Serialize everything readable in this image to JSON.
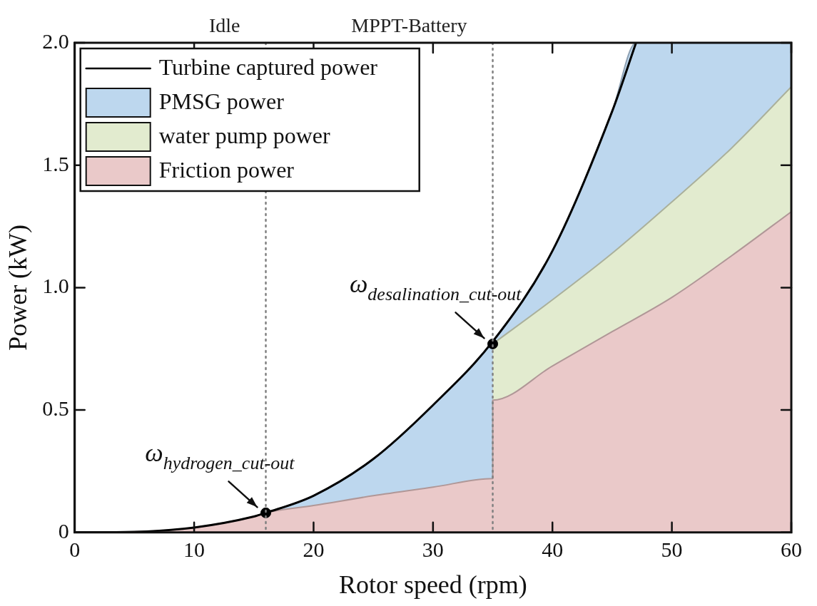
{
  "chart_data": {
    "type": "area",
    "xlabel": "Rotor speed (rpm)",
    "ylabel": "Power (kW)",
    "xlim": [
      0,
      60
    ],
    "xticks": [
      0,
      10,
      20,
      30,
      40,
      50,
      60
    ],
    "ylim": [
      0,
      2
    ],
    "yticks": [
      0,
      0.5,
      {
        "value": 1,
        "label": "1.0"
      },
      1.5,
      {
        "value": 2,
        "label": "2.0"
      }
    ],
    "grid": false,
    "legend": "top left",
    "series": [
      {
        "name": "Turbine captured power",
        "type": "line",
        "color": "#000000",
        "x": [
          0,
          5,
          10,
          15,
          16,
          20,
          25,
          30,
          35,
          40,
          45,
          47
        ],
        "values": [
          0,
          0.002,
          0.02,
          0.065,
          0.08,
          0.15,
          0.3,
          0.52,
          0.78,
          1.15,
          1.72,
          2.0
        ]
      },
      {
        "name": "PMSG power",
        "type": "area",
        "color": "#bdd7ee",
        "x": [
          16,
          20,
          25,
          30,
          35,
          40,
          45,
          47,
          60
        ],
        "values": [
          0.08,
          0.15,
          0.3,
          0.52,
          0.78,
          1.15,
          1.72,
          2.0,
          2.0
        ]
      },
      {
        "name": "water pump power",
        "type": "area",
        "color": "#e2ebcf",
        "x": [
          35,
          40,
          45,
          50,
          55,
          60
        ],
        "values": [
          0.77,
          0.95,
          1.14,
          1.35,
          1.57,
          1.82
        ]
      },
      {
        "name": "Friction power",
        "type": "area",
        "color": "#eac9c9",
        "x": [
          0,
          5,
          10,
          15,
          16,
          20,
          25,
          30,
          35,
          35,
          40,
          45,
          50,
          55,
          60
        ],
        "values": [
          0,
          0.002,
          0.02,
          0.065,
          0.08,
          0.11,
          0.15,
          0.185,
          0.22,
          0.54,
          0.68,
          0.82,
          0.96,
          1.13,
          1.31
        ]
      },
      {
        "type": "scatter",
        "color": "#000000",
        "marker": "circle",
        "x": [
          16,
          35
        ],
        "values": [
          0.08,
          0.77
        ]
      }
    ],
    "ref_lines": [
      {
        "axis": "x",
        "value": 16,
        "label": "Idle",
        "color": "#808080",
        "line_style": "dotted"
      },
      {
        "axis": "x",
        "value": 35,
        "label": "MPPT-Battery",
        "color": "#808080",
        "line_style": "dotted"
      }
    ],
    "annotations": [
      {
        "text": "ω$_{hydrogen_cut-out}$",
        "x": 16,
        "y": 0.08
      },
      {
        "text": "ω$_{desalination_cut-out}$",
        "x": 35,
        "y": 0.77
      }
    ]
  }
}
